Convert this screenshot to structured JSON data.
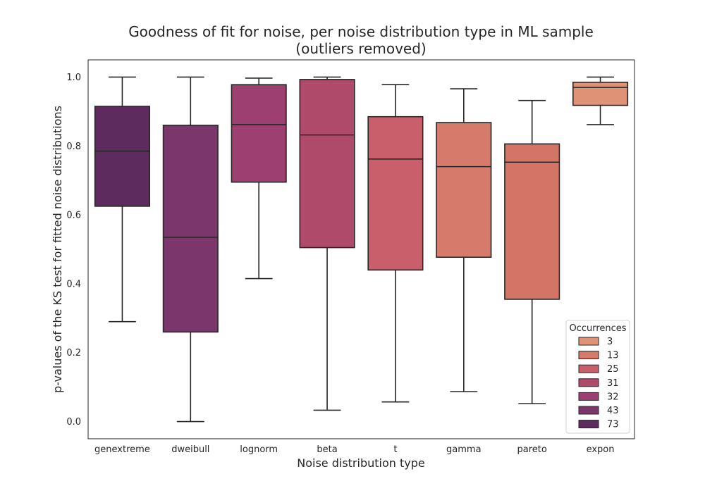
{
  "chart_data": {
    "type": "box",
    "title": [
      "Goodness of fit for noise, per noise distribution type in ML sample",
      "(outliers removed)"
    ],
    "xlabel": "Noise distribution type",
    "ylabel": "p-values of the KS test for fitted noise distributions",
    "ylim": [
      -0.05,
      1.05
    ],
    "yticks": [
      0.0,
      0.2,
      0.4,
      0.6,
      0.8,
      1.0
    ],
    "ytick_labels": [
      "0.0",
      "0.2",
      "0.4",
      "0.6",
      "0.8",
      "1.0"
    ],
    "grid": false,
    "categories": [
      "genextreme",
      "dweibull",
      "lognorm",
      "beta",
      "t",
      "gamma",
      "pareto",
      "expon"
    ],
    "boxes": [
      {
        "name": "genextreme",
        "whisker_low": 0.29,
        "q1": 0.625,
        "median": 0.785,
        "q3": 0.915,
        "whisker_high": 1.0,
        "occurrences": 73,
        "color": "#5e2b5e"
      },
      {
        "name": "dweibull",
        "whisker_low": 0.0,
        "q1": 0.26,
        "median": 0.535,
        "q3": 0.86,
        "whisker_high": 1.0,
        "occurrences": 43,
        "color": "#7b366c"
      },
      {
        "name": "lognorm",
        "whisker_low": 0.415,
        "q1": 0.695,
        "median": 0.862,
        "q3": 0.978,
        "whisker_high": 0.997,
        "occurrences": 32,
        "color": "#9d4071"
      },
      {
        "name": "beta",
        "whisker_low": 0.033,
        "q1": 0.505,
        "median": 0.832,
        "q3": 0.993,
        "whisker_high": 1.0,
        "occurrences": 31,
        "color": "#b04a6b"
      },
      {
        "name": "t",
        "whisker_low": 0.057,
        "q1": 0.44,
        "median": 0.762,
        "q3": 0.885,
        "whisker_high": 0.978,
        "occurrences": 25,
        "color": "#c95f6b"
      },
      {
        "name": "gamma",
        "whisker_low": 0.087,
        "q1": 0.477,
        "median": 0.74,
        "q3": 0.868,
        "whisker_high": 0.966,
        "occurrences": 13,
        "color": "#d67a6c"
      },
      {
        "name": "pareto",
        "whisker_low": 0.052,
        "q1": 0.355,
        "median": 0.753,
        "q3": 0.806,
        "whisker_high": 0.932,
        "occurrences": 13,
        "color": "#d47466"
      },
      {
        "name": "expon",
        "whisker_low": 0.862,
        "q1": 0.918,
        "median": 0.97,
        "q3": 0.985,
        "whisker_high": 1.0,
        "occurrences": 3,
        "color": "#df9275"
      }
    ],
    "legend": {
      "title": "Occurrences",
      "placement": "lower-right",
      "entries": [
        {
          "label": "3",
          "color": "#df9275"
        },
        {
          "label": "13",
          "color": "#d67a6c"
        },
        {
          "label": "25",
          "color": "#c95f6b"
        },
        {
          "label": "31",
          "color": "#b04a6b"
        },
        {
          "label": "32",
          "color": "#9d4071"
        },
        {
          "label": "43",
          "color": "#7b366c"
        },
        {
          "label": "73",
          "color": "#5e2b5e"
        }
      ]
    }
  }
}
